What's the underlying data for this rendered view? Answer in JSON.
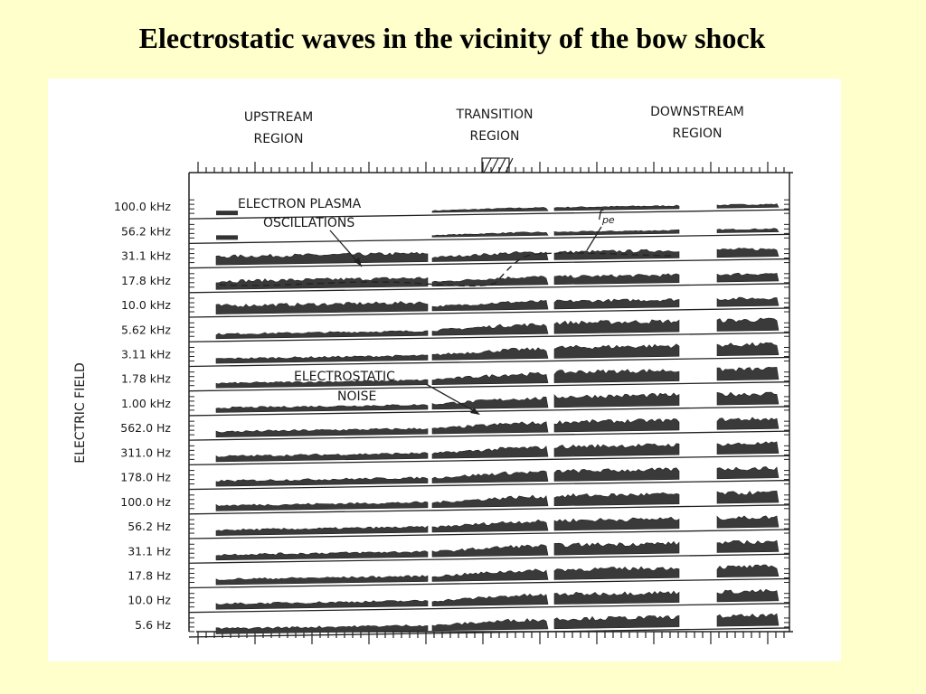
{
  "slide": {
    "title": "Electrostatic waves in the vicinity of the bow shock"
  },
  "figure": {
    "regions": [
      {
        "line1": "UPSTREAM",
        "line2": "REGION"
      },
      {
        "line1": "TRANSITION",
        "line2": "REGION"
      },
      {
        "line1": "DOWNSTREAM",
        "line2": "REGION"
      }
    ],
    "y_axis_label": "ELECTRIC FIELD",
    "channels": [
      "100.0 kHz",
      "56.2 kHz",
      "31.1 kHz",
      "17.8 kHz",
      "10.0 kHz",
      "5.62 kHz",
      "3.11 kHz",
      "1.78 kHz",
      "1.00 kHz",
      "562.0 Hz",
      "311.0 Hz",
      "178.0 Hz",
      "100.0 Hz",
      "56.2 Hz",
      "31.1 Hz",
      "17.8 Hz",
      "10.0 Hz",
      "5.6 Hz"
    ],
    "annotations": {
      "plasma_line1": "ELECTRON PLASMA",
      "plasma_line2": "OSCILLATIONS",
      "noise_line1": "ELECTROSTATIC",
      "noise_line2": "NOISE",
      "fpe_main": "f",
      "fpe_sub": "pe"
    }
  }
}
